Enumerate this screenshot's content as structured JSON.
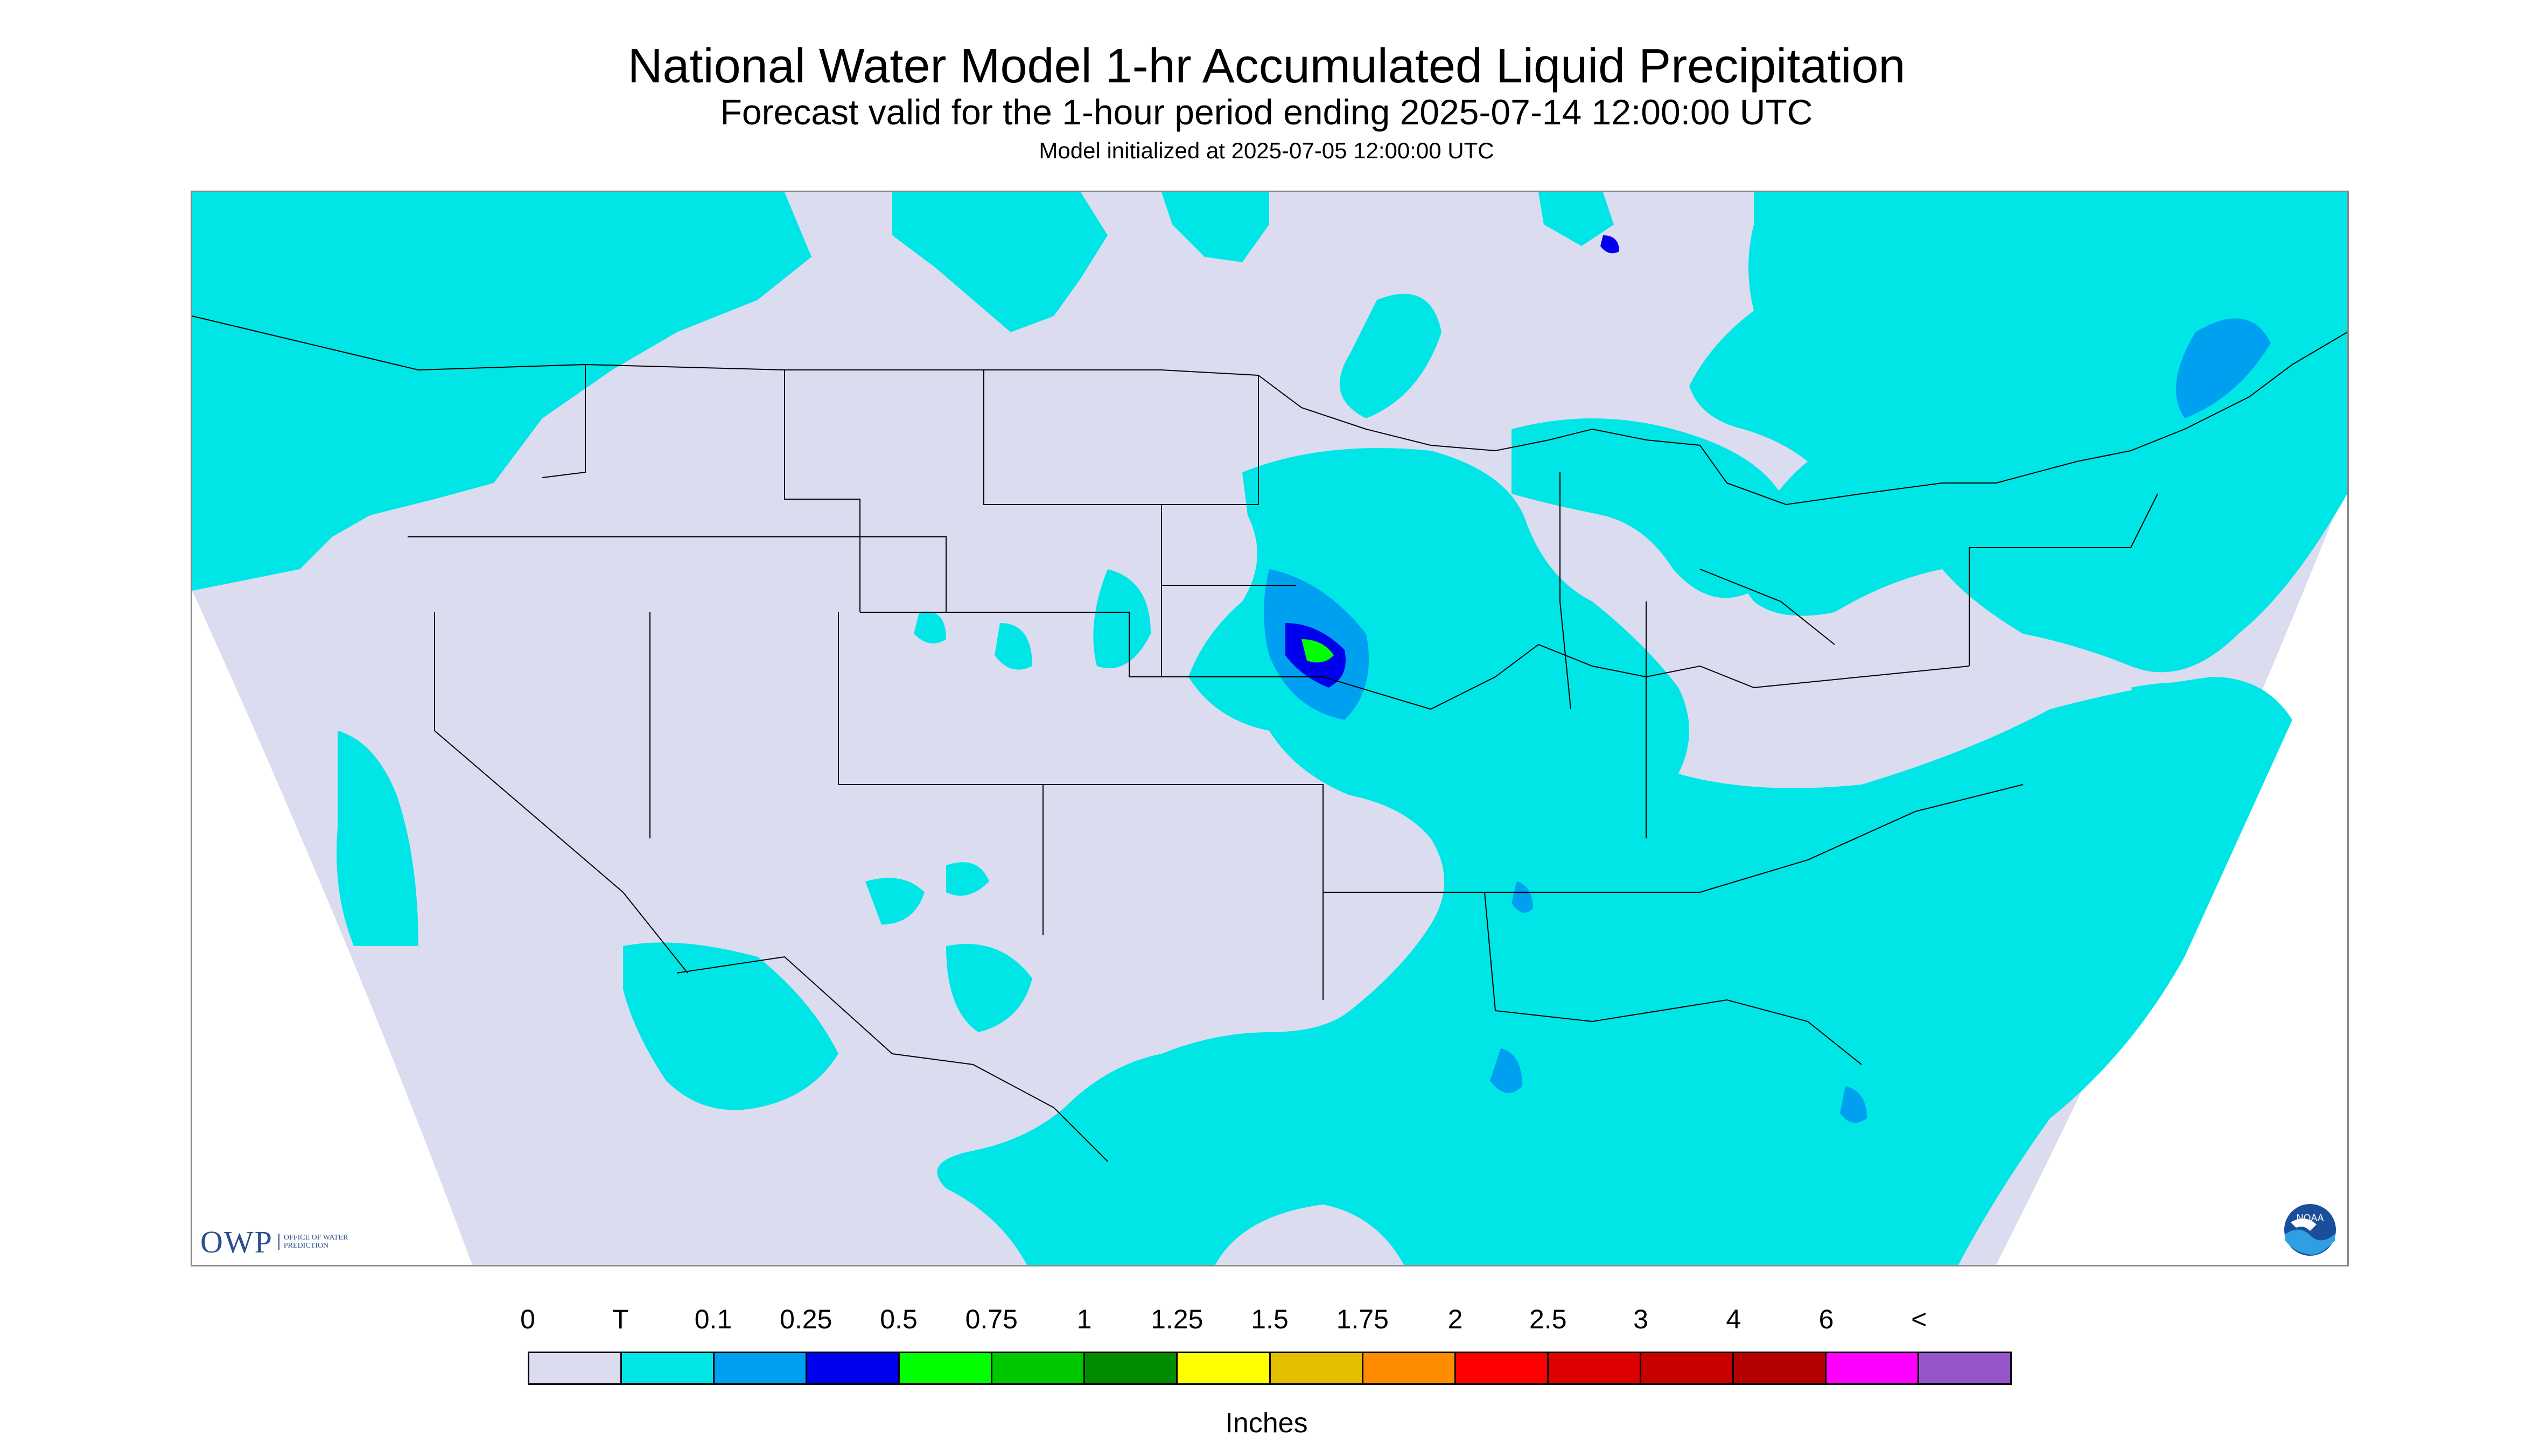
{
  "header": {
    "title": "National Water Model 1-hr Accumulated Liquid Precipitation",
    "subtitle": "Forecast valid for the 1-hour period ending 2025-07-14 12:00:00 UTC",
    "init_line": "Model initialized at 2025-07-05 12:00:00 UTC"
  },
  "logos": {
    "owp_mark": "OWP",
    "owp_text": "OFFICE OF WATER PREDICTION",
    "noaa_text": "NOAA"
  },
  "legend": {
    "labels": [
      "0",
      "T",
      "0.1",
      "0.25",
      "0.5",
      "0.75",
      "1",
      "1.25",
      "1.5",
      "1.75",
      "2",
      "2.5",
      "3",
      "4",
      "6",
      "<"
    ],
    "colors": [
      "#dcdcf0",
      "#00e6e6",
      "#00a0f0",
      "#0000ee",
      "#00ff00",
      "#00c800",
      "#008c00",
      "#ffff00",
      "#e6be00",
      "#ff8c00",
      "#ff0000",
      "#dc0000",
      "#c80000",
      "#b40000",
      "#ff00ff",
      "#9655c8"
    ],
    "units": "Inches"
  },
  "map": {
    "background_color": "#dcdcf0",
    "outside_color": "#ffffff",
    "boundary_color": "#000000",
    "precip_trace_color": "#00e6e6",
    "precip_light_color": "#00a0f0",
    "precip_moderate_color": "#0000ee",
    "precip_heavy_color": "#00ff00"
  }
}
